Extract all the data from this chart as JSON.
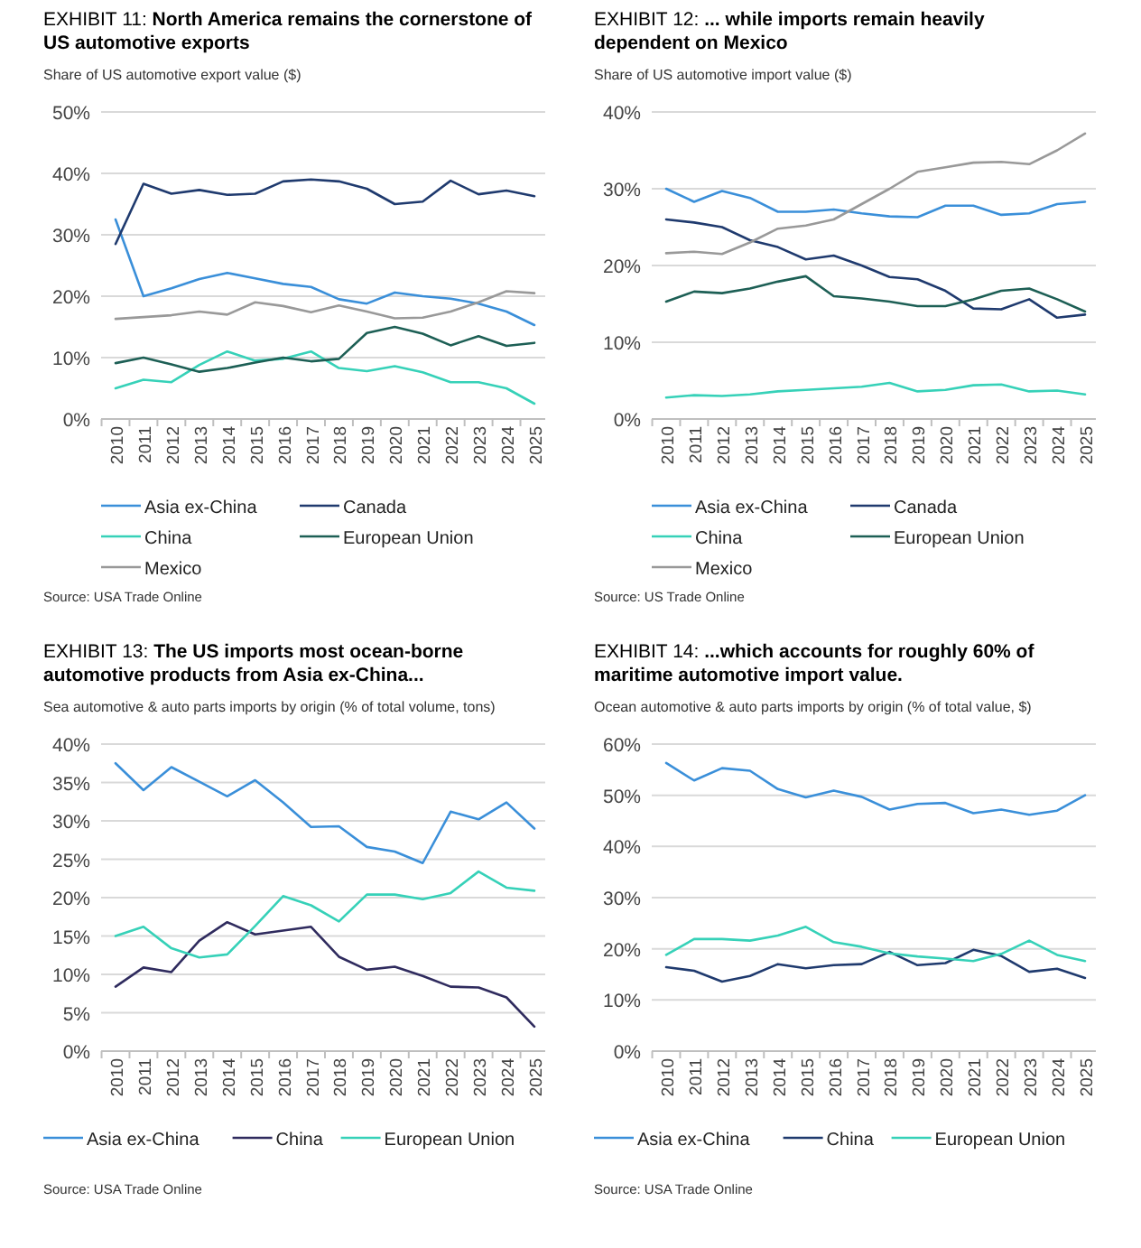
{
  "chart_data": [
    {
      "type": "line",
      "title": "EXHIBIT 11: North America remains the cornerstone of US automotive exports",
      "subtitle": "Share of US automotive export value ($)",
      "categories": [
        "2010",
        "2011",
        "2012",
        "2013",
        "2014",
        "2015",
        "2016",
        "2017",
        "2018",
        "2019",
        "2020",
        "2021",
        "2022",
        "2023",
        "2024",
        "2025"
      ],
      "series": [
        {
          "name": "Asia ex-China",
          "color": "#3a8fd9",
          "values": [
            32.5,
            20,
            21.3,
            22.8,
            23.8,
            22.9,
            22,
            21.5,
            19.5,
            18.8,
            20.6,
            20,
            19.6,
            18.8,
            17.5,
            15.3
          ]
        },
        {
          "name": "Canada",
          "color": "#1f3a6e",
          "values": [
            28.5,
            38.3,
            36.7,
            37.3,
            36.5,
            36.7,
            38.7,
            39,
            38.7,
            37.5,
            35,
            35.4,
            38.8,
            36.6,
            37.2,
            36.3
          ]
        },
        {
          "name": "China",
          "color": "#36d1b8",
          "values": [
            5,
            6.4,
            6,
            8.8,
            11,
            9.5,
            9.8,
            11,
            8.3,
            7.8,
            8.6,
            7.6,
            6,
            6,
            5,
            2.5
          ]
        },
        {
          "name": "European Union",
          "color": "#1d5f55",
          "values": [
            9.1,
            10,
            8.9,
            7.7,
            8.3,
            9.2,
            10,
            9.4,
            9.8,
            14,
            15,
            13.9,
            12,
            13.5,
            11.9,
            12.4
          ]
        },
        {
          "name": "Mexico",
          "color": "#999999",
          "values": [
            16.3,
            16.6,
            16.9,
            17.5,
            17,
            19,
            18.4,
            17.4,
            18.5,
            17.5,
            16.4,
            16.5,
            17.5,
            19,
            20.8,
            20.5
          ]
        }
      ],
      "ylim": [
        0,
        50
      ],
      "yticks": [
        {
          "value": 0,
          "label": "0%"
        },
        {
          "value": 10,
          "label": "10%"
        },
        {
          "value": 20,
          "label": "20%"
        },
        {
          "value": 30,
          "label": "30%"
        },
        {
          "value": 40,
          "label": "40%"
        },
        {
          "value": 50,
          "label": "50%"
        }
      ],
      "grid": "y",
      "legend": "bottom",
      "annotations": [
        "Source: USA Trade Online"
      ]
    },
    {
      "type": "line",
      "title": "EXHIBIT 12: ... while imports remain heavily dependent on Mexico",
      "subtitle": "Share of US automotive import value ($)",
      "categories": [
        "2010",
        "2011",
        "2012",
        "2013",
        "2014",
        "2015",
        "2016",
        "2017",
        "2018",
        "2019",
        "2020",
        "2021",
        "2022",
        "2023",
        "2024",
        "2025"
      ],
      "series": [
        {
          "name": "Asia ex-China",
          "color": "#3a8fd9",
          "values": [
            30,
            28.3,
            29.7,
            28.8,
            27,
            27,
            27.3,
            26.8,
            26.4,
            26.3,
            27.8,
            27.8,
            26.6,
            26.8,
            28,
            28.3
          ]
        },
        {
          "name": "Canada",
          "color": "#1f3a6e",
          "values": [
            26,
            25.6,
            25,
            23.3,
            22.4,
            20.8,
            21.3,
            20,
            18.5,
            18.2,
            16.7,
            14.4,
            14.3,
            15.6,
            13.2,
            13.6
          ]
        },
        {
          "name": "China",
          "color": "#36d1b8",
          "values": [
            2.8,
            3.1,
            3,
            3.2,
            3.6,
            3.8,
            4,
            4.2,
            4.7,
            3.6,
            3.8,
            4.4,
            4.5,
            3.6,
            3.7,
            3.2
          ]
        },
        {
          "name": "European Union",
          "color": "#1d5f55",
          "values": [
            15.3,
            16.6,
            16.4,
            17,
            17.9,
            18.6,
            16,
            15.7,
            15.3,
            14.7,
            14.7,
            15.6,
            16.7,
            17,
            15.6,
            14
          ]
        },
        {
          "name": "Mexico",
          "color": "#999999",
          "values": [
            21.6,
            21.8,
            21.5,
            23,
            24.8,
            25.2,
            26,
            28,
            30,
            32.2,
            32.8,
            33.4,
            33.5,
            33.2,
            35,
            37.2
          ]
        }
      ],
      "ylim": [
        0,
        40
      ],
      "yticks": [
        {
          "value": 0,
          "label": "0%"
        },
        {
          "value": 10,
          "label": "10%"
        },
        {
          "value": 20,
          "label": "20%"
        },
        {
          "value": 30,
          "label": "30%"
        },
        {
          "value": 40,
          "label": "40%"
        }
      ],
      "grid": "y",
      "legend": "bottom",
      "annotations": [
        "Source: US Trade Online"
      ]
    },
    {
      "type": "line",
      "title": "EXHIBIT 13: The US imports most ocean-borne automotive products from Asia ex-China...",
      "subtitle": "Sea automotive & auto parts imports by origin (% of total volume, tons)",
      "categories": [
        "2010",
        "2011",
        "2012",
        "2013",
        "2014",
        "2015",
        "2016",
        "2017",
        "2018",
        "2019",
        "2020",
        "2021",
        "2022",
        "2023",
        "2024",
        "2025"
      ],
      "series": [
        {
          "name": "Asia ex-China",
          "color": "#3a8fd9",
          "values": [
            37.5,
            34,
            37,
            35.1,
            33.2,
            35.3,
            32.4,
            29.2,
            29.3,
            26.6,
            26,
            24.5,
            31.2,
            30.2,
            32.4,
            29
          ]
        },
        {
          "name": "China",
          "color": "#2f2b5e",
          "values": [
            8.4,
            10.9,
            10.3,
            14.4,
            16.8,
            15.2,
            15.7,
            16.2,
            12.3,
            10.6,
            11,
            9.8,
            8.4,
            8.3,
            7,
            3.2
          ]
        },
        {
          "name": "European Union",
          "color": "#36d1b8",
          "values": [
            15,
            16.2,
            13.4,
            12.2,
            12.6,
            16.3,
            20.2,
            19,
            16.9,
            20.4,
            20.4,
            19.8,
            20.6,
            23.4,
            21.3,
            20.9
          ]
        }
      ],
      "ylim": [
        0,
        40
      ],
      "yticks": [
        {
          "value": 0,
          "label": "0%"
        },
        {
          "value": 5,
          "label": "5%"
        },
        {
          "value": 10,
          "label": "10%"
        },
        {
          "value": 15,
          "label": "15%"
        },
        {
          "value": 20,
          "label": "20%"
        },
        {
          "value": 25,
          "label": "25%"
        },
        {
          "value": 30,
          "label": "30%"
        },
        {
          "value": 35,
          "label": "35%"
        },
        {
          "value": 40,
          "label": "40%"
        }
      ],
      "grid": "y",
      "legend": "bottom",
      "annotations": [
        "Source: USA Trade Online"
      ]
    },
    {
      "type": "line",
      "title": "EXHIBIT 14: ...which accounts for roughly 60% of maritime automotive import value.",
      "subtitle": "Ocean automotive & auto parts imports by origin (% of total value, $)",
      "categories": [
        "2010",
        "2011",
        "2012",
        "2013",
        "2014",
        "2015",
        "2016",
        "2017",
        "2018",
        "2019",
        "2020",
        "2021",
        "2022",
        "2023",
        "2024",
        "2025"
      ],
      "series": [
        {
          "name": "Asia ex-China",
          "color": "#3a8fd9",
          "values": [
            56.3,
            52.9,
            55.3,
            54.8,
            51.2,
            49.6,
            50.9,
            49.7,
            47.2,
            48.3,
            48.5,
            46.5,
            47.2,
            46.2,
            47,
            50
          ]
        },
        {
          "name": "China",
          "color": "#1f3a6e",
          "values": [
            16.4,
            15.7,
            13.6,
            14.7,
            17,
            16.2,
            16.8,
            17,
            19.4,
            16.8,
            17.2,
            19.8,
            18.6,
            15.5,
            16.1,
            14.3
          ]
        },
        {
          "name": "European Union",
          "color": "#36d1b8",
          "values": [
            18.8,
            21.9,
            21.9,
            21.6,
            22.6,
            24.3,
            21.3,
            20.4,
            19.1,
            18.5,
            18.1,
            17.6,
            19,
            21.6,
            18.8,
            17.6
          ]
        }
      ],
      "ylim": [
        0,
        60
      ],
      "yticks": [
        {
          "value": 0,
          "label": "0%"
        },
        {
          "value": 10,
          "label": "10%"
        },
        {
          "value": 20,
          "label": "20%"
        },
        {
          "value": 30,
          "label": "30%"
        },
        {
          "value": 40,
          "label": "40%"
        },
        {
          "value": 50,
          "label": "50%"
        },
        {
          "value": 60,
          "label": "60%"
        }
      ],
      "grid": "y",
      "legend": "bottom",
      "annotations": [
        "Source: USA Trade Online"
      ]
    }
  ]
}
